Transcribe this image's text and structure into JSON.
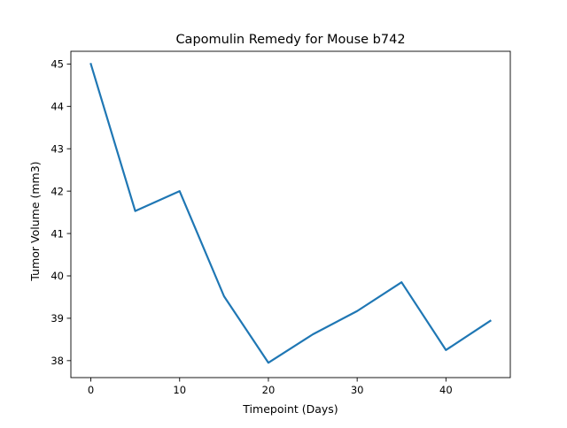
{
  "chart_data": {
    "type": "line",
    "title": "Capomulin Remedy for Mouse b742",
    "xlabel": "Timepoint (Days)",
    "ylabel": "Tumor Volume (mm3)",
    "xlim": [
      -2.25,
      47.25
    ],
    "ylim": [
      37.6,
      45.3
    ],
    "xticks": [
      0,
      10,
      20,
      30,
      40
    ],
    "yticks": [
      38,
      39,
      40,
      41,
      42,
      43,
      44,
      45
    ],
    "x": [
      0,
      5,
      10,
      15,
      20,
      25,
      30,
      35,
      40,
      45
    ],
    "series": [
      {
        "values": [
          45.0,
          41.53,
          42.0,
          39.52,
          37.95,
          38.62,
          39.17,
          39.85,
          38.25,
          38.94
        ],
        "color": "#1f77b4"
      }
    ],
    "grid": false,
    "legend": "none"
  }
}
